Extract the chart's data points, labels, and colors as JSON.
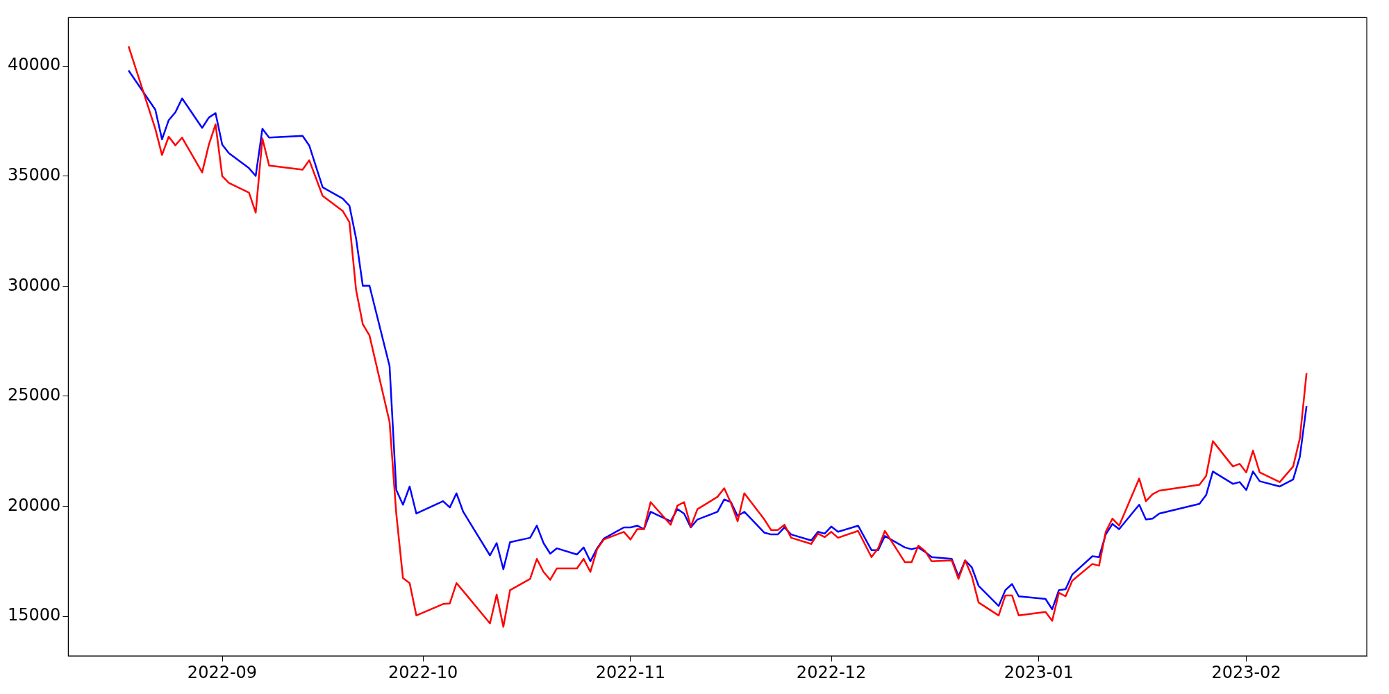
{
  "chart_data": {
    "type": "line",
    "x": [
      "2022-08-18",
      "2022-08-22",
      "2022-08-23",
      "2022-08-24",
      "2022-08-25",
      "2022-08-26",
      "2022-08-29",
      "2022-08-30",
      "2022-08-31",
      "2022-09-01",
      "2022-09-02",
      "2022-09-05",
      "2022-09-06",
      "2022-09-07",
      "2022-09-08",
      "2022-09-13",
      "2022-09-14",
      "2022-09-16",
      "2022-09-19",
      "2022-09-20",
      "2022-09-21",
      "2022-09-22",
      "2022-09-23",
      "2022-09-26",
      "2022-09-27",
      "2022-09-28",
      "2022-09-29",
      "2022-09-30",
      "2022-10-04",
      "2022-10-05",
      "2022-10-06",
      "2022-10-07",
      "2022-10-11",
      "2022-10-12",
      "2022-10-13",
      "2022-10-14",
      "2022-10-17",
      "2022-10-18",
      "2022-10-19",
      "2022-10-20",
      "2022-10-21",
      "2022-10-24",
      "2022-10-25",
      "2022-10-26",
      "2022-10-27",
      "2022-10-28",
      "2022-10-31",
      "2022-11-01",
      "2022-11-02",
      "2022-11-03",
      "2022-11-04",
      "2022-11-07",
      "2022-11-08",
      "2022-11-09",
      "2022-11-10",
      "2022-11-11",
      "2022-11-14",
      "2022-11-15",
      "2022-11-16",
      "2022-11-17",
      "2022-11-18",
      "2022-11-21",
      "2022-11-22",
      "2022-11-23",
      "2022-11-24",
      "2022-11-25",
      "2022-11-28",
      "2022-11-29",
      "2022-11-30",
      "2022-12-01",
      "2022-12-02",
      "2022-12-05",
      "2022-12-07",
      "2022-12-08",
      "2022-12-09",
      "2022-12-12",
      "2022-12-13",
      "2022-12-14",
      "2022-12-15",
      "2022-12-16",
      "2022-12-19",
      "2022-12-20",
      "2022-12-21",
      "2022-12-22",
      "2022-12-23",
      "2022-12-26",
      "2022-12-27",
      "2022-12-28",
      "2022-12-29",
      "2023-01-02",
      "2023-01-03",
      "2023-01-04",
      "2023-01-05",
      "2023-01-06",
      "2023-01-09",
      "2023-01-10",
      "2023-01-11",
      "2023-01-12",
      "2023-01-13",
      "2023-01-16",
      "2023-01-17",
      "2023-01-18",
      "2023-01-19",
      "2023-01-25",
      "2023-01-26",
      "2023-01-27",
      "2023-01-30",
      "2023-01-31",
      "2023-02-01",
      "2023-02-02",
      "2023-02-03",
      "2023-02-06",
      "2023-02-08",
      "2023-02-09",
      "2023-02-10"
    ],
    "series": [
      {
        "color": "#ff0000",
        "values": [
          40900,
          37150,
          35960,
          36790,
          36400,
          36750,
          35170,
          36430,
          37350,
          35000,
          34690,
          34250,
          33340,
          36710,
          35480,
          35290,
          35720,
          34100,
          33420,
          32910,
          29820,
          28270,
          27760,
          23830,
          19670,
          16740,
          16510,
          15040,
          15560,
          15590,
          16510,
          16150,
          14680,
          15990,
          14520,
          16190,
          16700,
          17610,
          17020,
          16660,
          17180,
          17180,
          17610,
          17020,
          18050,
          18490,
          18840,
          18490,
          18960,
          18960,
          20190,
          19160,
          20030,
          20190,
          19080,
          19870,
          20430,
          20820,
          20150,
          19320,
          20590,
          19400,
          18920,
          18920,
          19160,
          18570,
          18290,
          18760,
          18600,
          18840,
          18570,
          18880,
          17690,
          18090,
          18880,
          17460,
          17460,
          18210,
          17970,
          17500,
          17540,
          16700,
          17540,
          16820,
          15630,
          15040,
          15950,
          15950,
          15040,
          15200,
          14800,
          16070,
          15910,
          16620,
          17380,
          17300,
          18840,
          19440,
          19120,
          21260,
          20230,
          20550,
          20710,
          20980,
          21380,
          22960,
          21810,
          21930,
          21540,
          22530,
          21540,
          21100,
          21810,
          23080,
          26050
        ]
      },
      {
        "color": "#0000ff",
        "values": [
          39800,
          38020,
          36670,
          37540,
          37900,
          38530,
          37190,
          37660,
          37860,
          36430,
          36040,
          35360,
          35010,
          37150,
          36750,
          36830,
          36390,
          34490,
          33980,
          33660,
          32160,
          30020,
          30020,
          26370,
          20740,
          20070,
          20900,
          19670,
          20230,
          19950,
          20590,
          19750,
          17770,
          18330,
          17140,
          18370,
          18570,
          19120,
          18330,
          17850,
          18090,
          17810,
          18130,
          17500,
          18090,
          18530,
          19040,
          19040,
          19120,
          18960,
          19750,
          19320,
          19870,
          19670,
          19040,
          19400,
          19750,
          20310,
          20190,
          19560,
          19750,
          18800,
          18720,
          18720,
          19040,
          18720,
          18450,
          18840,
          18760,
          19080,
          18840,
          19120,
          18010,
          18010,
          18650,
          18130,
          18050,
          18130,
          17930,
          17690,
          17610,
          16820,
          17540,
          17220,
          16390,
          15470,
          16190,
          16470,
          15910,
          15790,
          15320,
          16190,
          16230,
          16900,
          17730,
          17690,
          18720,
          19200,
          18960,
          20070,
          19400,
          19440,
          19670,
          20110,
          20510,
          21580,
          21020,
          21100,
          20740,
          21580,
          21140,
          20900,
          21220,
          22250,
          24550
        ]
      }
    ],
    "xlim": [
      "2022-08-09",
      "2023-02-19"
    ],
    "xticks": [
      "2022-09",
      "2022-10",
      "2022-11",
      "2022-12",
      "2023-01",
      "2023-02"
    ],
    "ylim": [
      13200,
      42200
    ],
    "yticks": [
      15000,
      20000,
      25000,
      30000,
      35000,
      40000
    ],
    "grid": false,
    "legend": false,
    "marker": "none",
    "line_style": "solid"
  }
}
